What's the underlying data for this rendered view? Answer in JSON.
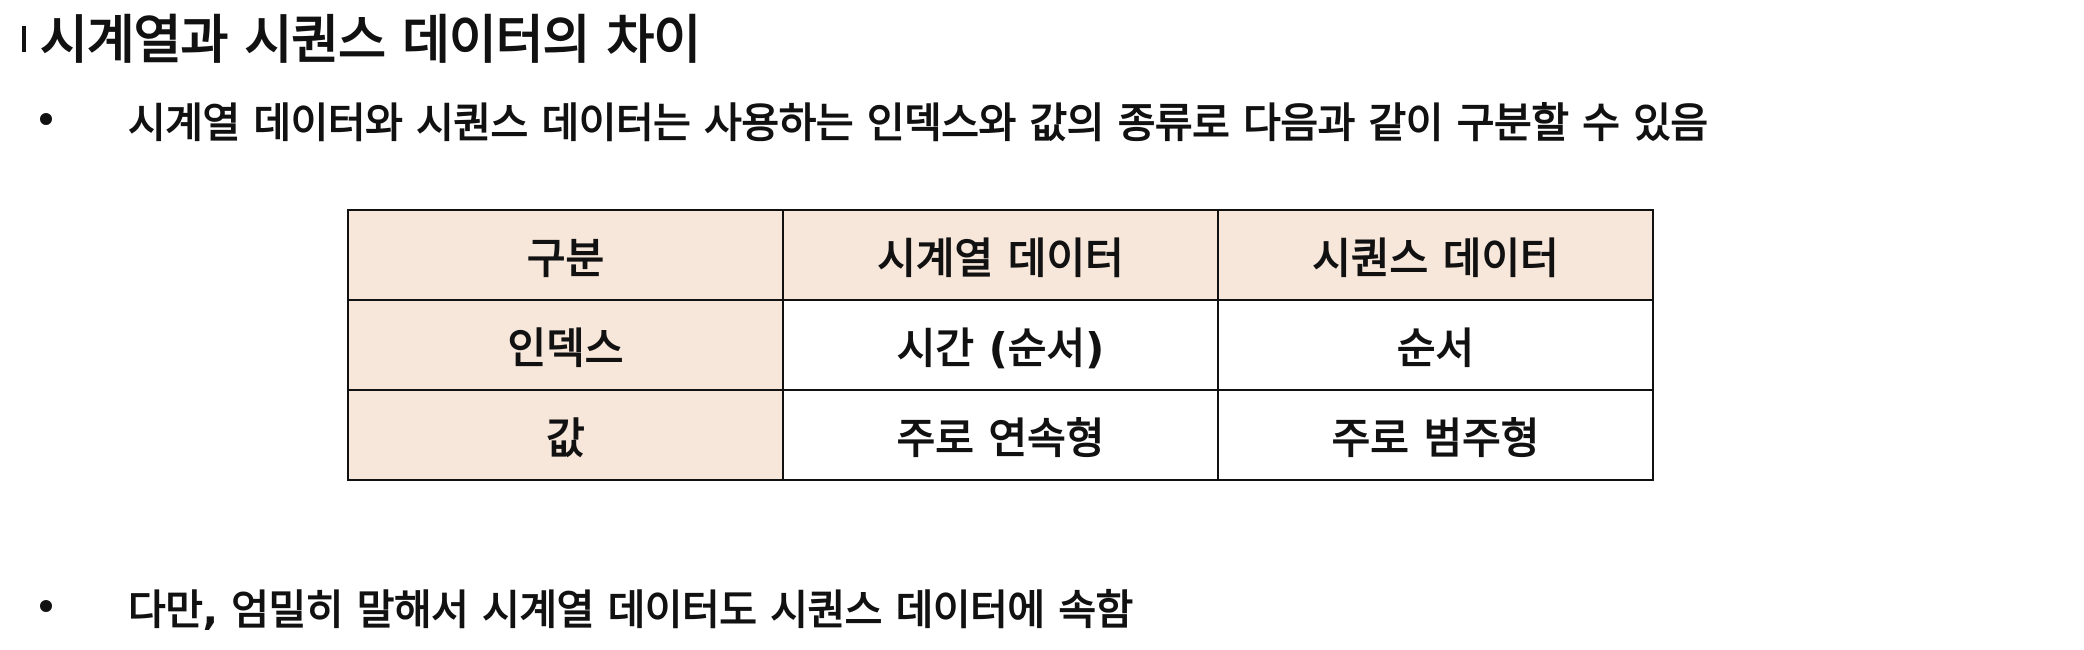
{
  "title": "시계열과 시퀀스 데이터의 차이",
  "bullets": [
    "시계열 데이터와 시퀀스 데이터는 사용하는 인덱스와 값의 종류로 다음과 같이 구분할 수 있음",
    "다만, 엄밀히 말해서 시계열 데이터도 시퀀스 데이터에 속함"
  ],
  "table": {
    "header": [
      "구분",
      "시계열 데이터",
      "시퀀스 데이터"
    ],
    "rows": [
      [
        "인덱스",
        "시간 (순서)",
        "순서"
      ],
      [
        "값",
        "주로 연속형",
        "주로 범주형"
      ]
    ]
  },
  "colors": {
    "header_fill": "#f7e6da",
    "border": "#111111",
    "text": "#111111"
  }
}
